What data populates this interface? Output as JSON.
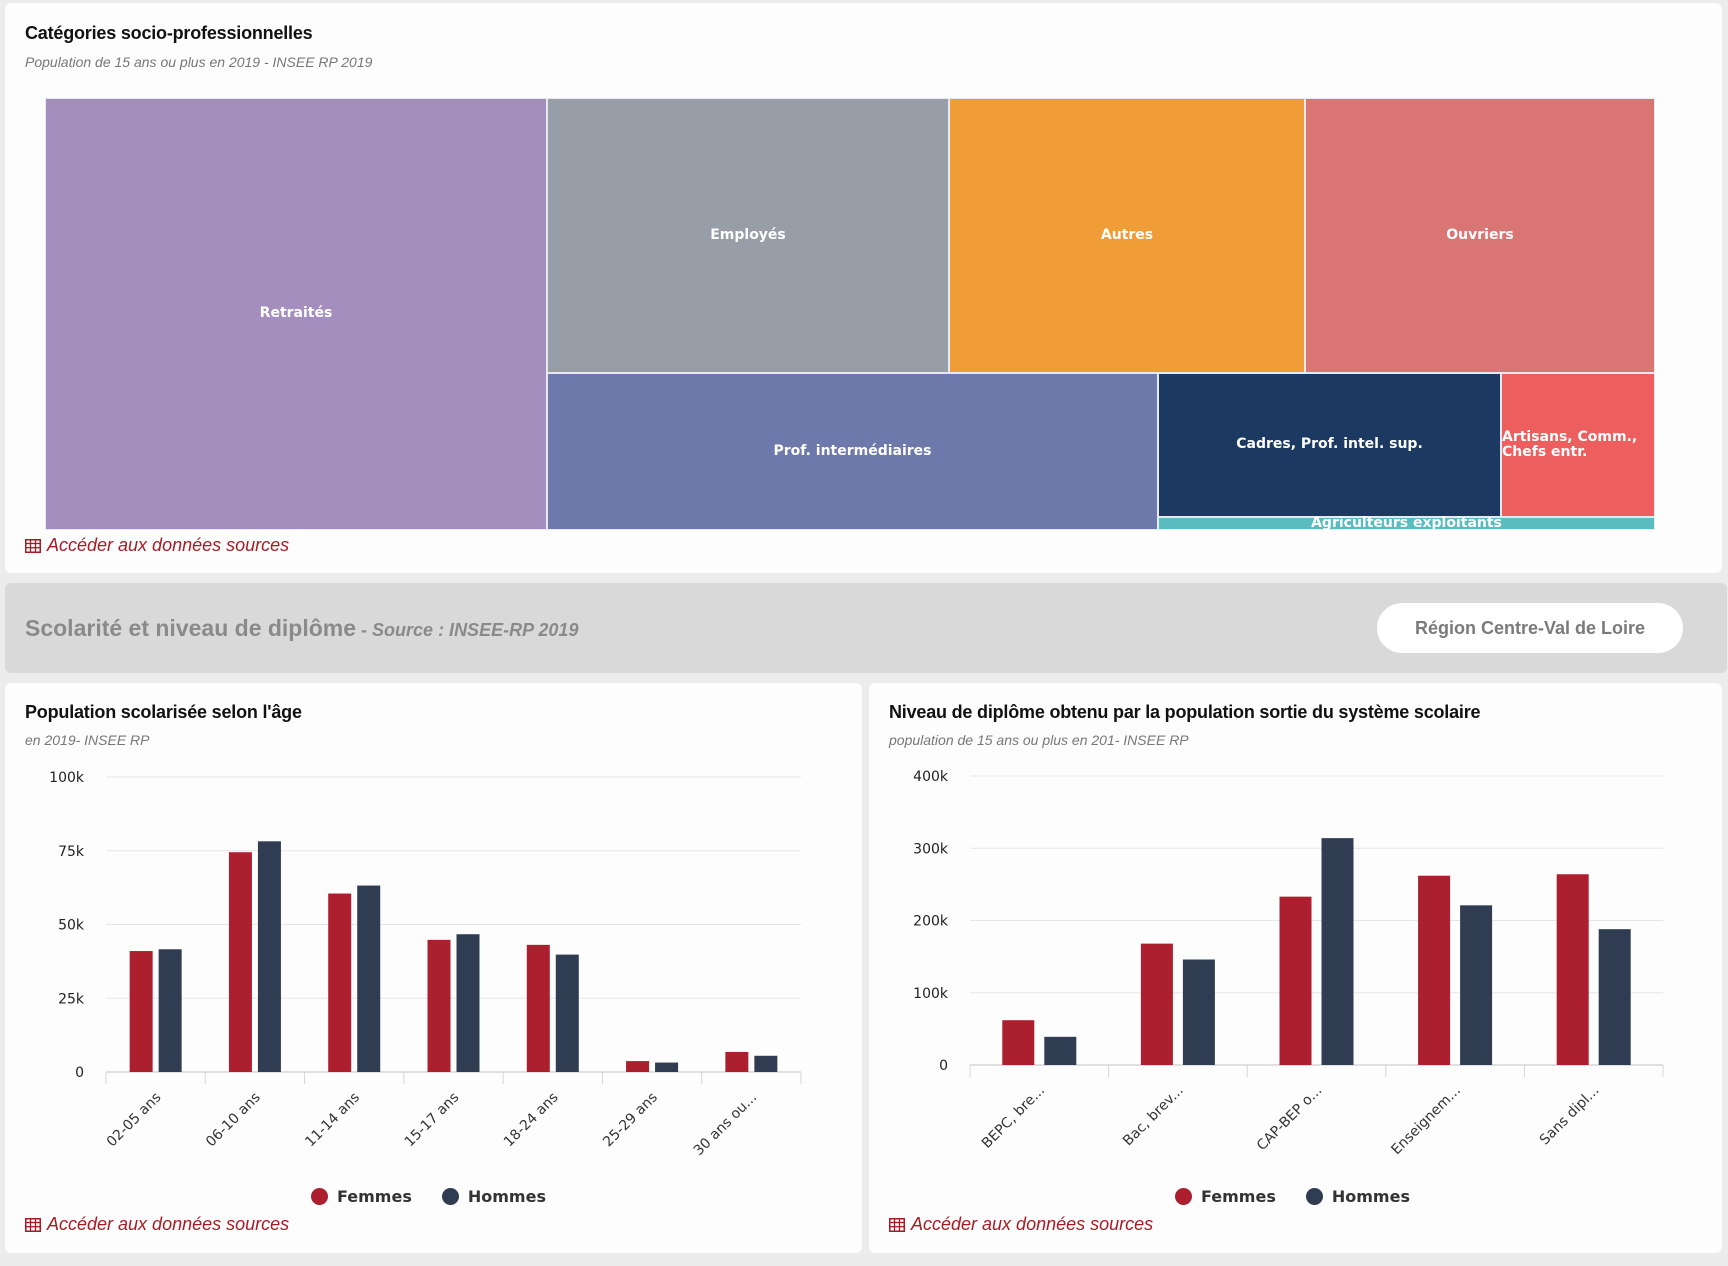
{
  "colors": {
    "femmes": "#ab1f2f",
    "hommes": "#2f3c52",
    "link": "#a51c24"
  },
  "treemap_card": {
    "title": "Catégories socio-professionnelles",
    "subtitle": "Population de 15 ans ou plus en 2019 - INSEE RP 2019",
    "link_label": "Accéder aux données sources",
    "link_icon": "table-icon"
  },
  "section": {
    "title": "Scolarité et niveau de diplôme",
    "source": " - Source : INSEE-RP 2019",
    "region_button": "Région Centre-Val de Loire"
  },
  "age_card": {
    "title": "Population scolarisée selon l'âge",
    "subtitle": "en 2019- INSEE RP",
    "link_label": "Accéder aux données sources",
    "legend": [
      "Femmes",
      "Hommes"
    ]
  },
  "diploma_card": {
    "title": "Niveau de diplôme obtenu par la population sortie du système scolaire",
    "subtitle": "population de 15 ans ou plus en 201- INSEE RP",
    "link_label": "Accéder aux données sources",
    "legend": [
      "Femmes",
      "Hommes"
    ]
  },
  "chart_data": [
    {
      "type": "treemap",
      "title": "Catégories socio-professionnelles",
      "subtitle": "Population de 15 ans ou plus en 2019 - INSEE RP 2019",
      "items": [
        {
          "label": "Retraités",
          "color": "#a48ebe",
          "share": 0.284
        },
        {
          "label": "Employés",
          "color": "#979ea8",
          "share": 0.156
        },
        {
          "label": "Autres",
          "color": "#f09c37",
          "share": 0.138
        },
        {
          "label": "Ouvriers",
          "color": "#d97573",
          "share": 0.136
        },
        {
          "label": "Prof. intermédiaires",
          "color": "#6d78ab",
          "share": 0.142
        },
        {
          "label": "Cadres, Prof. intel. sup.",
          "color": "#1c3a61",
          "share": 0.079
        },
        {
          "label": "Artisans, Comm., Chefs entr.",
          "color": "#ed5e5e",
          "share": 0.035
        },
        {
          "label": "Agriculteurs exploitants",
          "color": "#5bbcc0",
          "share": 0.012
        }
      ]
    },
    {
      "type": "bar",
      "title": "Population scolarisée selon l'âge",
      "subtitle": "en 2019- INSEE RP",
      "categories": [
        "02-05 ans",
        "06-10 ans",
        "11-14 ans",
        "15-17 ans",
        "18-24 ans",
        "25-29 ans",
        "30 ans ou..."
      ],
      "series": [
        {
          "name": "Femmes",
          "color": "#ab1f2f",
          "values": [
            41000,
            74500,
            60500,
            44800,
            43100,
            3700,
            6800
          ]
        },
        {
          "name": "Hommes",
          "color": "#2f3c52",
          "values": [
            41600,
            78200,
            63200,
            46700,
            39800,
            3200,
            5500
          ]
        }
      ],
      "yticks": [
        0,
        25000,
        50000,
        75000,
        100000
      ],
      "ytick_labels": [
        "0",
        "25k",
        "50k",
        "75k",
        "100k"
      ],
      "ylim": [
        0,
        100000
      ],
      "xlabel": "",
      "ylabel": "",
      "grid": true,
      "legend": "bottom-center"
    },
    {
      "type": "bar",
      "title": "Niveau de diplôme obtenu par la population sortie du système scolaire",
      "subtitle": "population de 15 ans ou plus en 201- INSEE RP",
      "categories": [
        "BEPC, bre...",
        "Bac, brev...",
        "CAP-BEP o...",
        "Enseignem...",
        "Sans dipl..."
      ],
      "series": [
        {
          "name": "Femmes",
          "color": "#ab1f2f",
          "values": [
            62000,
            168000,
            233000,
            262000,
            264000
          ]
        },
        {
          "name": "Hommes",
          "color": "#2f3c52",
          "values": [
            39000,
            146000,
            314000,
            221000,
            188000
          ]
        }
      ],
      "yticks": [
        0,
        100000,
        200000,
        300000,
        400000
      ],
      "ytick_labels": [
        "0",
        "100k",
        "200k",
        "300k",
        "400k"
      ],
      "ylim": [
        0,
        400000
      ],
      "xlabel": "",
      "ylabel": "",
      "grid": true,
      "legend": "bottom-center"
    }
  ]
}
